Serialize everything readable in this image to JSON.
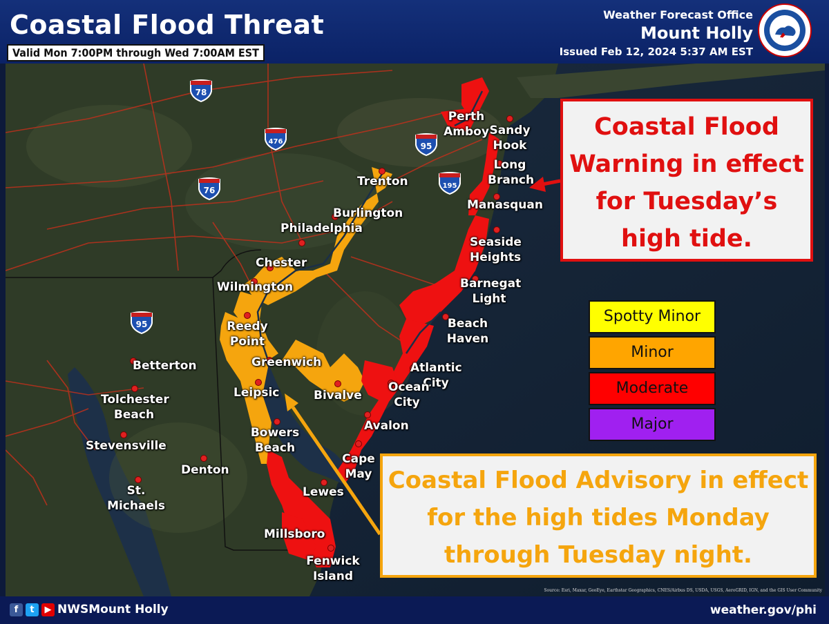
{
  "header": {
    "title": "Coastal Flood Threat",
    "valid": "Valid Mon 7:00PM through Wed 7:00AM EST",
    "office_line1": "Weather Forecast Office",
    "office_line2": "Mount Holly",
    "issued": "Issued Feb 12, 2024 5:37 AM EST",
    "logo_text": "NATIONAL WEATHER SERVICE"
  },
  "callouts": {
    "warning": [
      "Coastal Flood",
      "Warning in effect",
      "for Tuesday’s",
      "high tide."
    ],
    "advisory": [
      "Coastal Flood Advisory in effect",
      "for the high tides Monday",
      "through Tuesday night."
    ]
  },
  "legend": [
    {
      "label": "Spotty Minor",
      "color": "#ffff00"
    },
    {
      "label": "Minor",
      "color": "#ffa500"
    },
    {
      "label": "Moderate",
      "color": "#ff0000"
    },
    {
      "label": "Major",
      "color": "#a020f0"
    }
  ],
  "interstates": [
    "78",
    "476",
    "95",
    "76",
    "195",
    "95"
  ],
  "cities": {
    "perth_amboy": "Perth Amboy",
    "sandy_hook": "Sandy Hook",
    "long_branch": "Long Branch",
    "manasquan": "Manasquan",
    "seaside_heights": "Seaside Heights",
    "barnegat_light": "Barnegat Light",
    "beach_haven": "Beach Haven",
    "atlantic_city": "Atlantic City",
    "ocean_city": "Ocean City",
    "avalon": "Avalon",
    "cape_may": "Cape May",
    "trenton": "Trenton",
    "burlington": "Burlington",
    "philadelphia": "Philadelphia",
    "chester": "Chester",
    "wilmington": "Wilmington",
    "reedy_point": "Reedy Point",
    "greenwich": "Greenwich",
    "bivalve": "Bivalve",
    "leipsic": "Leipsic",
    "bowers_beach": "Bowers Beach",
    "lewes": "Lewes",
    "millsboro": "Millsboro",
    "fenwick_island": "Fenwick Island",
    "betterton": "Betterton",
    "tolchester_beach": "Tolchester Beach",
    "stevensville": "Stevensville",
    "denton": "Denton",
    "st_michaels": "St. Michaels"
  },
  "footer": {
    "social_handle": "NWSMount Holly",
    "website": "weather.gov/phi",
    "source": "Source: Esri, Maxar, GeoEye, Earthstar Geographics, CNES/Airbus DS, USDA, USGS, AeroGRID, IGN, and the GIS User Community"
  }
}
